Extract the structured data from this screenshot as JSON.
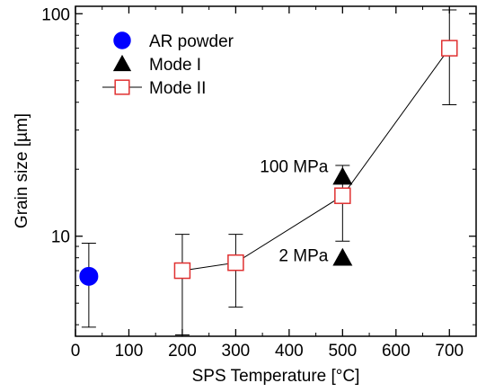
{
  "chart_data": {
    "type": "scatter",
    "xlabel": "SPS Temperature [°C]",
    "ylabel": "Grain size [µm]",
    "xlim": [
      0,
      750
    ],
    "ylim": [
      3.55,
      108
    ],
    "y_scale": "log",
    "grid": false,
    "legend_placement": "top-left",
    "x_ticks": [
      0,
      100,
      200,
      300,
      400,
      500,
      600,
      700
    ],
    "x_tick_labels": [
      "0",
      "100",
      "200",
      "300",
      "400",
      "500",
      "600",
      "700"
    ],
    "y_major_ticks": [
      10,
      100
    ],
    "y_tick_labels": [
      "10",
      "100"
    ],
    "y_minor_ticks": [
      4,
      5,
      6,
      7,
      8,
      9,
      20,
      30,
      40,
      50,
      60,
      70,
      80,
      90
    ],
    "series": [
      {
        "name": "AR powder",
        "marker": "filled-circle",
        "color": "#0000ff",
        "connected": false,
        "points": [
          {
            "x": 25,
            "y": 6.6,
            "err_low": 3.9,
            "err_high": 9.3
          }
        ]
      },
      {
        "name": "Mode I",
        "marker": "filled-triangle",
        "color": "#000000",
        "connected": false,
        "points": [
          {
            "x": 500,
            "y": 18.5,
            "err_low": null,
            "err_high": null
          },
          {
            "x": 500,
            "y": 8.0,
            "err_low": null,
            "err_high": null
          }
        ]
      },
      {
        "name": "Mode II",
        "marker": "open-square",
        "color": "#e03030",
        "connected": true,
        "points": [
          {
            "x": 200,
            "y": 7.0,
            "err_low": 3.6,
            "err_high": 10.2
          },
          {
            "x": 300,
            "y": 7.6,
            "err_low": 4.8,
            "err_high": 10.2
          },
          {
            "x": 500,
            "y": 15.2,
            "err_low": 9.5,
            "err_high": 20.8
          },
          {
            "x": 700,
            "y": 70,
            "err_low": 39,
            "err_high": 104
          }
        ]
      }
    ],
    "annotations": [
      {
        "text": "100 MPa",
        "x": 500,
        "y": 18.5
      },
      {
        "text": "2 MPa",
        "x": 500,
        "y": 8.0
      }
    ]
  }
}
